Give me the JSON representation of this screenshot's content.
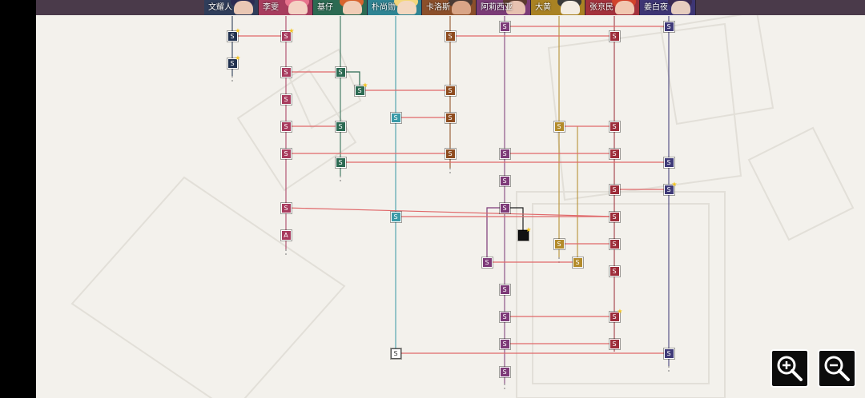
{
  "characters": [
    {
      "name": "文耀人",
      "tab": "#2f3d5a",
      "face": "#e9c7b4",
      "hair": "#2b2b52"
    },
    {
      "name": "李雯",
      "tab": "#a73d5e",
      "face": "#f4d2c4",
      "hair": "#e7738d"
    },
    {
      "name": "基仔",
      "tab": "#2c6a52",
      "face": "#f1cdb6",
      "hair": "#d7642e"
    },
    {
      "name": "朴尚勋",
      "tab": "#2f8493",
      "face": "#f3d8c0",
      "hair": "#f3d77c"
    },
    {
      "name": "卡洛斯",
      "tab": "#8b4f2a",
      "face": "#d9a587",
      "hair": "#4a3a34"
    },
    {
      "name": "阿莉西亚",
      "tab": "#7b3c77",
      "face": "#e7c1b0",
      "hair": "#5b3b2f"
    },
    {
      "name": "大黄",
      "tab": "#a98223",
      "face": "#f3ece2",
      "hair": "#3a3a3a"
    },
    {
      "name": "张京民",
      "tab": "#a3323c",
      "face": "#f1c7b0",
      "hair": "#d2432c"
    },
    {
      "name": "姜白夜",
      "tab": "#3d3574",
      "face": "#e6cdbf",
      "hair": "#3a2a52"
    }
  ],
  "colors": {
    "wen": "#22324f",
    "li": "#a83c5e",
    "ji": "#2c6a52",
    "pu": "#3a9aa7",
    "ka": "#8e4c1f",
    "ali": "#7d3a78",
    "dh": "#b38b2a",
    "zh": "#9d2d3a",
    "jiang": "#3f3a78",
    "link": "#e0686a",
    "black": "#111111"
  },
  "nodes": [
    {
      "c": "wen",
      "l": "S",
      "star": true
    },
    {
      "c": "wen",
      "l": "S",
      "star": true
    },
    {
      "c": "li",
      "l": "S",
      "star": true
    },
    {
      "c": "li",
      "l": "S"
    },
    {
      "c": "li",
      "l": "S"
    },
    {
      "c": "li",
      "l": "S"
    },
    {
      "c": "li",
      "l": "S"
    },
    {
      "c": "li",
      "l": "S"
    },
    {
      "c": "li",
      "l": "A"
    },
    {
      "c": "ji",
      "l": "S"
    },
    {
      "c": "ji",
      "l": "S",
      "star": true
    },
    {
      "c": "ji",
      "l": "S"
    },
    {
      "c": "ji",
      "l": "S"
    },
    {
      "c": "pu",
      "l": "S"
    },
    {
      "c": "pu",
      "l": "S"
    },
    {
      "c": "pu",
      "l": "S",
      "pale": true
    },
    {
      "c": "ka",
      "l": "S"
    },
    {
      "c": "ka",
      "l": "S"
    },
    {
      "c": "ka",
      "l": "S"
    },
    {
      "c": "ka",
      "l": "S"
    },
    {
      "c": "ali",
      "l": "S"
    },
    {
      "c": "ali",
      "l": "S"
    },
    {
      "c": "ali",
      "l": "S"
    },
    {
      "c": "ali",
      "l": "S"
    },
    {
      "c": "ali",
      "l": "S"
    },
    {
      "c": "ali",
      "l": "S"
    },
    {
      "c": "ali",
      "l": "S"
    },
    {
      "c": "ali",
      "l": "S"
    },
    {
      "c": "ali",
      "l": "S"
    },
    {
      "c": "black",
      "l": "",
      "star": true,
      "black": true
    },
    {
      "c": "dh",
      "l": "S"
    },
    {
      "c": "dh",
      "l": "S"
    },
    {
      "c": "dh",
      "l": "S"
    },
    {
      "c": "zh",
      "l": "S"
    },
    {
      "c": "zh",
      "l": "S"
    },
    {
      "c": "zh",
      "l": "S"
    },
    {
      "c": "zh",
      "l": "S"
    },
    {
      "c": "zh",
      "l": "S"
    },
    {
      "c": "zh",
      "l": "S"
    },
    {
      "c": "zh",
      "l": "S"
    },
    {
      "c": "zh",
      "l": "S",
      "star": true
    },
    {
      "c": "zh",
      "l": "S"
    },
    {
      "c": "jiang",
      "l": "S"
    },
    {
      "c": "jiang",
      "l": "S"
    },
    {
      "c": "jiang",
      "l": "S",
      "star": true
    },
    {
      "c": "jiang",
      "l": "S"
    }
  ],
  "zoom": {
    "in_icon": "zoom-in-icon",
    "out_icon": "zoom-out-icon"
  }
}
